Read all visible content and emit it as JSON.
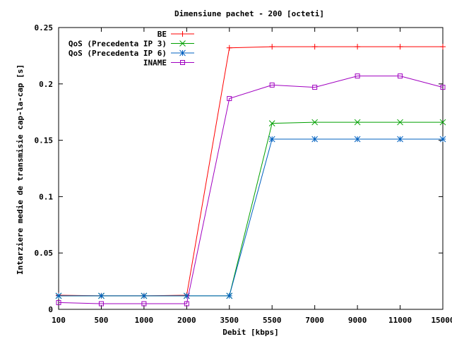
{
  "chart_data": {
    "type": "line",
    "title": "Dimensiune pachet - 200 [octeti]",
    "xlabel": "Debit [kbps]",
    "ylabel": "Intarziere medie de transmisie cap-la-cap [s]",
    "categories": [
      "100",
      "500",
      "1000",
      "2000",
      "3500",
      "5500",
      "7000",
      "9000",
      "11000",
      "15000"
    ],
    "ylim": [
      0,
      0.25
    ],
    "yticks": [
      "0",
      "0.05",
      "0.1",
      "0.15",
      "0.2",
      "0.25"
    ],
    "grid": false,
    "legend_position": "top-left",
    "series": [
      {
        "name": "BE",
        "color": "#ff0000",
        "marker": "plus",
        "values": [
          0.0125,
          0.012,
          0.012,
          0.0125,
          0.232,
          0.233,
          0.233,
          0.233,
          0.233,
          0.233
        ]
      },
      {
        "name": "QoS (Precedenta IP 3)",
        "color": "#00a000",
        "marker": "x",
        "values": [
          0.012,
          0.012,
          0.012,
          0.012,
          0.012,
          0.165,
          0.166,
          0.166,
          0.166,
          0.166
        ]
      },
      {
        "name": "QoS (Precedenta IP 6)",
        "color": "#0060c0",
        "marker": "star",
        "values": [
          0.012,
          0.012,
          0.012,
          0.012,
          0.012,
          0.151,
          0.151,
          0.151,
          0.151,
          0.151
        ]
      },
      {
        "name": "INAME",
        "color": "#a000c0",
        "marker": "square",
        "values": [
          0.006,
          0.005,
          0.005,
          0.005,
          0.187,
          0.199,
          0.197,
          0.207,
          0.207,
          0.197
        ]
      }
    ]
  }
}
